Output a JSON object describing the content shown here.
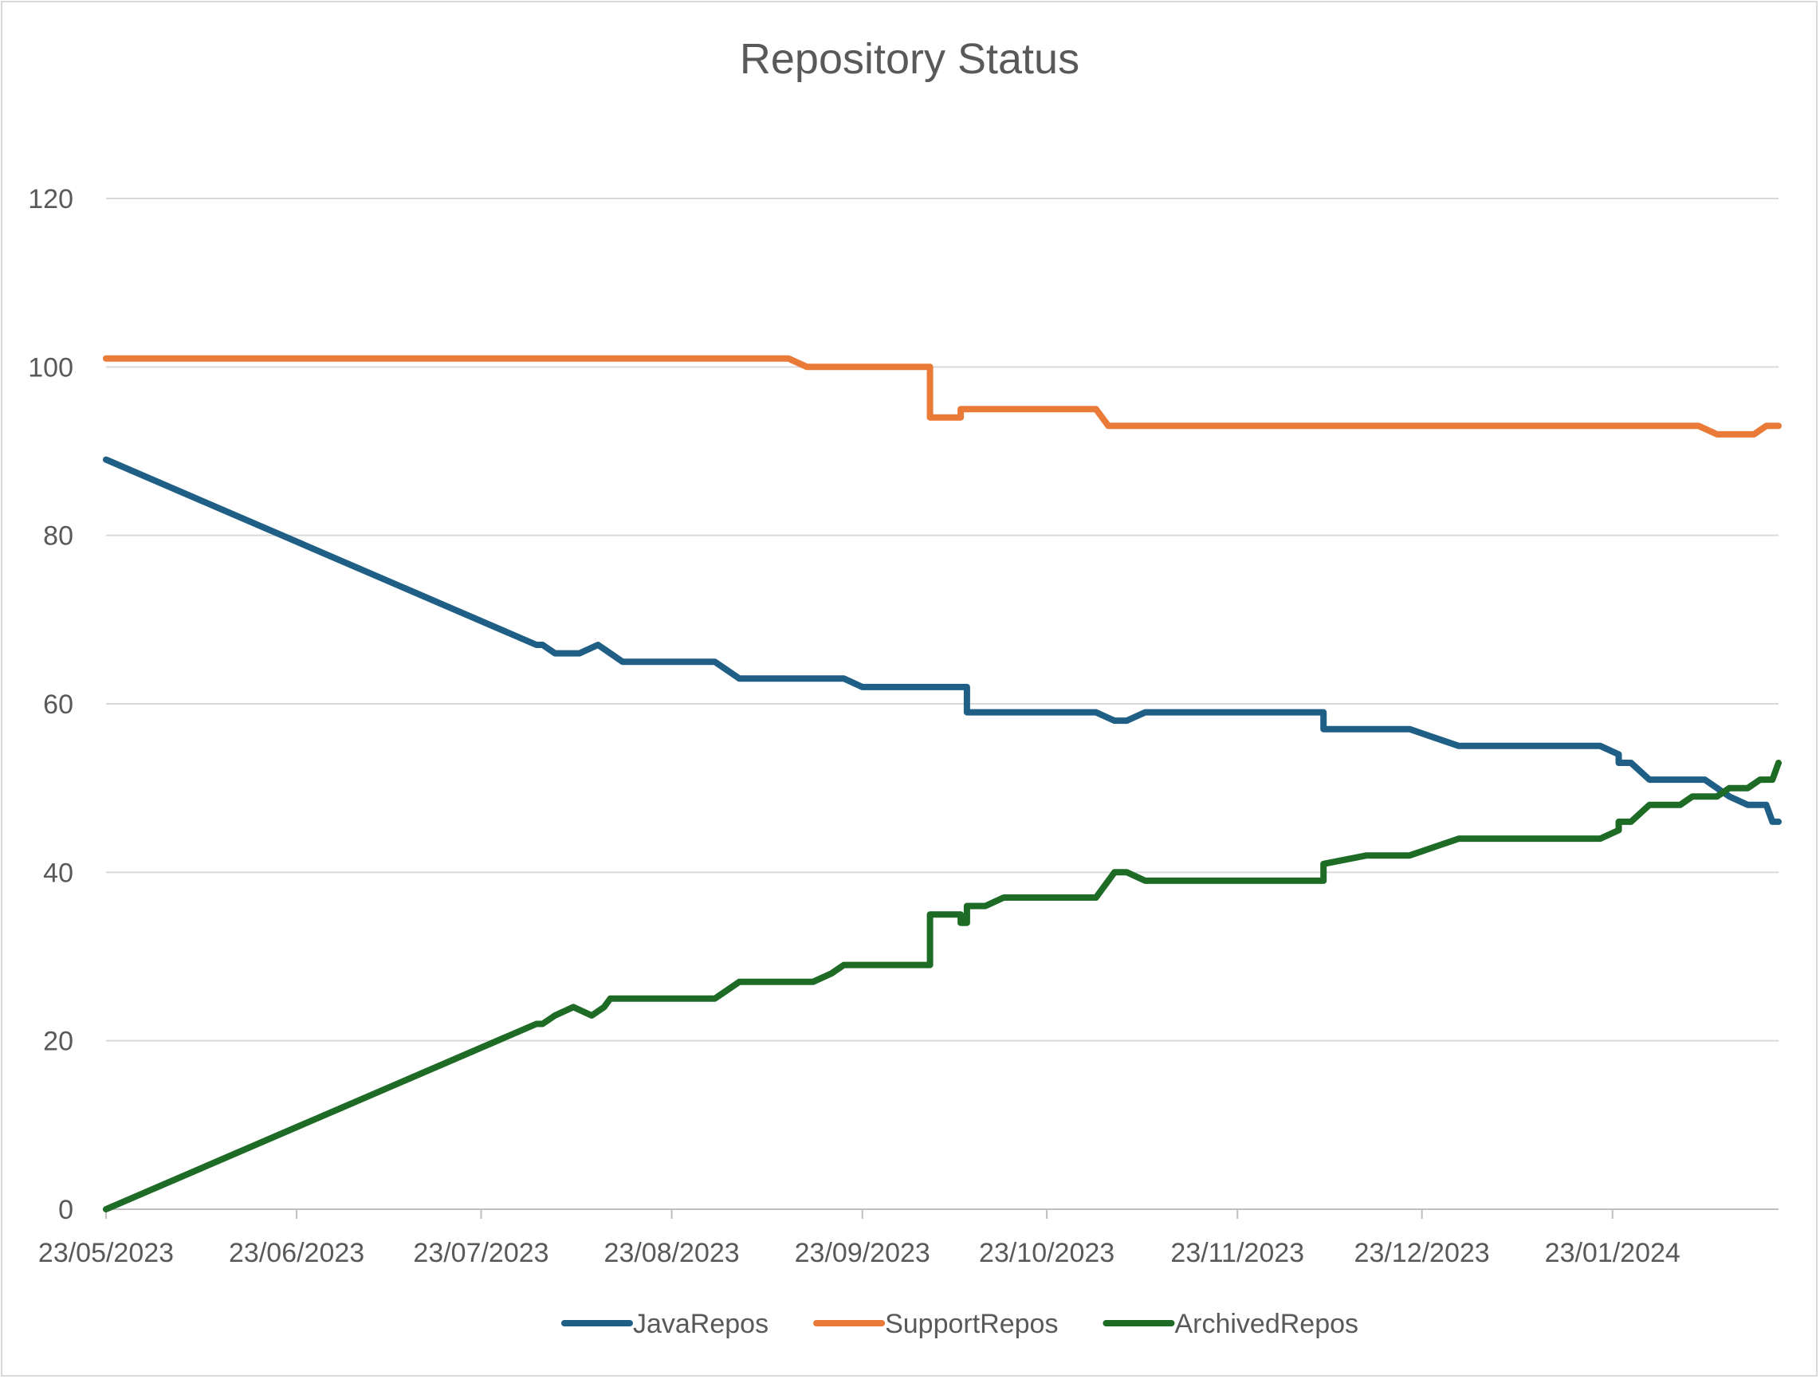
{
  "chart_data": {
    "type": "line",
    "title": "Repository Status",
    "xlabel": "",
    "ylabel": "",
    "ylim": [
      0,
      120
    ],
    "y_ticks": [
      0,
      20,
      40,
      60,
      80,
      100,
      120
    ],
    "xlim": [
      "2023-05-23",
      "2024-02-19"
    ],
    "x_ticks": [
      {
        "date": "2023-05-23",
        "label": "23/05/2023"
      },
      {
        "date": "2023-06-23",
        "label": "23/06/2023"
      },
      {
        "date": "2023-07-23",
        "label": "23/07/2023"
      },
      {
        "date": "2023-08-23",
        "label": "23/08/2023"
      },
      {
        "date": "2023-09-23",
        "label": "23/09/2023"
      },
      {
        "date": "2023-10-23",
        "label": "23/10/2023"
      },
      {
        "date": "2023-11-23",
        "label": "23/11/2023"
      },
      {
        "date": "2023-12-23",
        "label": "23/12/2023"
      },
      {
        "date": "2024-01-23",
        "label": "23/01/2024"
      }
    ],
    "grid": true,
    "legend_position": "bottom",
    "series": [
      {
        "name": "JavaRepos",
        "color": "#1f5f86",
        "points": [
          [
            "2023-05-23",
            89
          ],
          [
            "2023-08-01",
            67
          ],
          [
            "2023-08-02",
            67
          ],
          [
            "2023-08-04",
            66
          ],
          [
            "2023-08-08",
            66
          ],
          [
            "2023-08-11",
            67
          ],
          [
            "2023-08-13",
            66
          ],
          [
            "2023-08-15",
            65
          ],
          [
            "2023-08-30",
            65
          ],
          [
            "2023-09-01",
            64
          ],
          [
            "2023-09-03",
            63
          ],
          [
            "2023-09-20",
            63
          ],
          [
            "2023-09-23",
            62
          ],
          [
            "2023-10-10",
            62
          ],
          [
            "2023-10-10",
            59
          ],
          [
            "2023-10-31",
            59
          ],
          [
            "2023-11-03",
            58
          ],
          [
            "2023-11-05",
            58
          ],
          [
            "2023-11-08",
            59
          ],
          [
            "2023-12-07",
            59
          ],
          [
            "2023-12-07",
            57
          ],
          [
            "2023-12-21",
            57
          ],
          [
            "2023-12-25",
            56
          ],
          [
            "2023-12-29",
            55
          ],
          [
            "2024-01-21",
            55
          ],
          [
            "2024-01-24",
            54
          ],
          [
            "2024-01-24",
            53
          ],
          [
            "2024-01-26",
            53
          ],
          [
            "2024-01-29",
            51
          ],
          [
            "2024-02-07",
            51
          ],
          [
            "2024-02-11",
            49
          ],
          [
            "2024-02-14",
            48
          ],
          [
            "2024-02-17",
            48
          ],
          [
            "2024-02-18",
            46
          ],
          [
            "2024-02-19",
            46
          ]
        ]
      },
      {
        "name": "SupportRepos",
        "color": "#e97a38",
        "points": [
          [
            "2023-05-23",
            101
          ],
          [
            "2023-09-11",
            101
          ],
          [
            "2023-09-14",
            100
          ],
          [
            "2023-10-04",
            100
          ],
          [
            "2023-10-04",
            94
          ],
          [
            "2023-10-09",
            94
          ],
          [
            "2023-10-09",
            95
          ],
          [
            "2023-10-31",
            95
          ],
          [
            "2023-11-02",
            93
          ],
          [
            "2024-02-06",
            93
          ],
          [
            "2024-02-09",
            92
          ],
          [
            "2024-02-15",
            92
          ],
          [
            "2024-02-17",
            93
          ],
          [
            "2024-02-19",
            93
          ]
        ]
      },
      {
        "name": "ArchivedRepos",
        "color": "#1e6b26",
        "points": [
          [
            "2023-05-23",
            0
          ],
          [
            "2023-08-01",
            22
          ],
          [
            "2023-08-02",
            22
          ],
          [
            "2023-08-04",
            23
          ],
          [
            "2023-08-07",
            24
          ],
          [
            "2023-08-10",
            23
          ],
          [
            "2023-08-12",
            24
          ],
          [
            "2023-08-13",
            25
          ],
          [
            "2023-08-30",
            25
          ],
          [
            "2023-09-01",
            26
          ],
          [
            "2023-09-03",
            27
          ],
          [
            "2023-09-15",
            27
          ],
          [
            "2023-09-18",
            28
          ],
          [
            "2023-09-20",
            29
          ],
          [
            "2023-10-04",
            29
          ],
          [
            "2023-10-04",
            35
          ],
          [
            "2023-10-09",
            35
          ],
          [
            "2023-10-09",
            34
          ],
          [
            "2023-10-10",
            34
          ],
          [
            "2023-10-10",
            36
          ],
          [
            "2023-10-13",
            36
          ],
          [
            "2023-10-16",
            37
          ],
          [
            "2023-10-31",
            37
          ],
          [
            "2023-11-03",
            40
          ],
          [
            "2023-11-05",
            40
          ],
          [
            "2023-11-08",
            39
          ],
          [
            "2023-12-07",
            39
          ],
          [
            "2023-12-07",
            41
          ],
          [
            "2023-12-14",
            42
          ],
          [
            "2023-12-21",
            42
          ],
          [
            "2023-12-25",
            43
          ],
          [
            "2023-12-29",
            44
          ],
          [
            "2024-01-21",
            44
          ],
          [
            "2024-01-24",
            45
          ],
          [
            "2024-01-24",
            46
          ],
          [
            "2024-01-26",
            46
          ],
          [
            "2024-01-29",
            48
          ],
          [
            "2024-02-03",
            48
          ],
          [
            "2024-02-05",
            49
          ],
          [
            "2024-02-09",
            49
          ],
          [
            "2024-02-11",
            50
          ],
          [
            "2024-02-14",
            50
          ],
          [
            "2024-02-16",
            51
          ],
          [
            "2024-02-18",
            51
          ],
          [
            "2024-02-19",
            53
          ]
        ]
      }
    ]
  }
}
